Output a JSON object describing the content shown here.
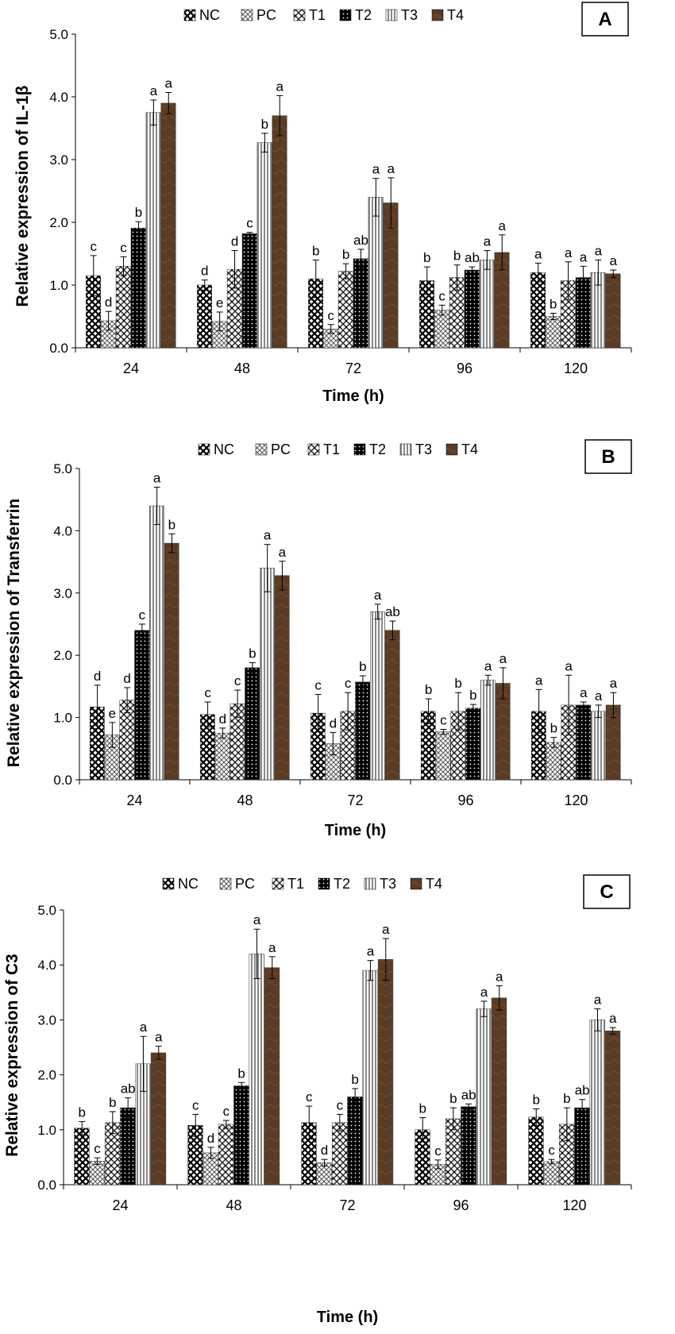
{
  "legend": [
    "NC",
    "PC",
    "T1",
    "T2",
    "T3",
    "T4"
  ],
  "chart_data": [
    {
      "type": "bar",
      "panel": "A",
      "ylabel": "Relative expression of IL-1β",
      "xlabel": "Time (h)",
      "categories": [
        "24",
        "48",
        "72",
        "96",
        "120"
      ],
      "ylim": [
        0,
        5
      ],
      "yticks": [
        "0.0",
        "1.0",
        "2.0",
        "3.0",
        "4.0",
        "5.0"
      ],
      "series": [
        {
          "name": "NC",
          "values": [
            1.15,
            1.0,
            1.1,
            1.07,
            1.2
          ],
          "errors": [
            0.32,
            0.08,
            0.3,
            0.22,
            0.15
          ],
          "letters": [
            "c",
            "d",
            "b",
            "b",
            "a"
          ]
        },
        {
          "name": "PC",
          "values": [
            0.43,
            0.42,
            0.3,
            0.6,
            0.5
          ],
          "errors": [
            0.15,
            0.15,
            0.07,
            0.08,
            0.05
          ],
          "letters": [
            "d",
            "e",
            "c",
            "c",
            "b"
          ]
        },
        {
          "name": "T1",
          "values": [
            1.3,
            1.25,
            1.22,
            1.12,
            1.07
          ],
          "errors": [
            0.15,
            0.3,
            0.12,
            0.2,
            0.3
          ],
          "letters": [
            "c",
            "d",
            "b",
            "b",
            "a"
          ]
        },
        {
          "name": "T2",
          "values": [
            1.91,
            1.82,
            1.42,
            1.24,
            1.12
          ],
          "errors": [
            0.1,
            0.02,
            0.15,
            0.05,
            0.18
          ],
          "letters": [
            "b",
            "c",
            "ab",
            "ab",
            "a"
          ]
        },
        {
          "name": "T3",
          "values": [
            3.75,
            3.27,
            2.4,
            1.4,
            1.2
          ],
          "errors": [
            0.2,
            0.15,
            0.3,
            0.15,
            0.2
          ],
          "letters": [
            "a",
            "b",
            "a",
            "a",
            "a"
          ]
        },
        {
          "name": "T4",
          "values": [
            3.9,
            3.7,
            2.31,
            1.52,
            1.18
          ],
          "errors": [
            0.17,
            0.32,
            0.4,
            0.28,
            0.06
          ],
          "letters": [
            "a",
            "a",
            "a",
            "a",
            "a"
          ]
        }
      ]
    },
    {
      "type": "bar",
      "panel": "B",
      "ylabel": "Relative expression of Transferrin",
      "xlabel": "Time (h)",
      "categories": [
        "24",
        "48",
        "72",
        "96",
        "120"
      ],
      "ylim": [
        0,
        5
      ],
      "yticks": [
        "0.0",
        "1.0",
        "2.0",
        "3.0",
        "4.0",
        "5.0"
      ],
      "series": [
        {
          "name": "NC",
          "values": [
            1.17,
            1.05,
            1.07,
            1.1,
            1.1
          ],
          "errors": [
            0.35,
            0.2,
            0.3,
            0.2,
            0.35
          ],
          "letters": [
            "d",
            "c",
            "c",
            "b",
            "a"
          ]
        },
        {
          "name": "PC",
          "values": [
            0.72,
            0.75,
            0.58,
            0.77,
            0.6
          ],
          "errors": [
            0.2,
            0.08,
            0.18,
            0.04,
            0.08
          ],
          "letters": [
            "e",
            "d",
            "d",
            "c",
            "b"
          ]
        },
        {
          "name": "T1",
          "values": [
            1.28,
            1.22,
            1.1,
            1.1,
            1.2
          ],
          "errors": [
            0.2,
            0.22,
            0.3,
            0.3,
            0.48
          ],
          "letters": [
            "d",
            "c",
            "c",
            "b",
            "a"
          ]
        },
        {
          "name": "T2",
          "values": [
            2.4,
            1.8,
            1.57,
            1.15,
            1.2
          ],
          "errors": [
            0.1,
            0.08,
            0.1,
            0.06,
            0.05
          ],
          "letters": [
            "c",
            "b",
            "b",
            "b",
            "a"
          ]
        },
        {
          "name": "T3",
          "values": [
            4.4,
            3.4,
            2.7,
            1.6,
            1.1
          ],
          "errors": [
            0.3,
            0.38,
            0.12,
            0.08,
            0.1
          ],
          "letters": [
            "a",
            "a",
            "a",
            "a",
            "a"
          ]
        },
        {
          "name": "T4",
          "values": [
            3.8,
            3.28,
            2.4,
            1.55,
            1.2
          ],
          "errors": [
            0.15,
            0.23,
            0.15,
            0.25,
            0.2
          ],
          "letters": [
            "b",
            "a",
            "ab",
            "a",
            "a"
          ]
        }
      ]
    },
    {
      "type": "bar",
      "panel": "C",
      "ylabel": "Relative expression of C3",
      "xlabel": "Time (h)",
      "categories": [
        "24",
        "48",
        "72",
        "96",
        "120"
      ],
      "ylim": [
        0,
        5
      ],
      "yticks": [
        "0.0",
        "1.0",
        "2.0",
        "3.0",
        "4.0",
        "5.0"
      ],
      "series": [
        {
          "name": "NC",
          "values": [
            1.03,
            1.08,
            1.13,
            1.0,
            1.23
          ],
          "errors": [
            0.12,
            0.2,
            0.3,
            0.22,
            0.15
          ],
          "letters": [
            "b",
            "c",
            "c",
            "b",
            "b"
          ]
        },
        {
          "name": "PC",
          "values": [
            0.43,
            0.58,
            0.4,
            0.37,
            0.42
          ],
          "errors": [
            0.06,
            0.1,
            0.06,
            0.08,
            0.04
          ],
          "letters": [
            "c",
            "d",
            "d",
            "c",
            "c"
          ]
        },
        {
          "name": "T1",
          "values": [
            1.13,
            1.1,
            1.13,
            1.2,
            1.1
          ],
          "errors": [
            0.2,
            0.07,
            0.15,
            0.2,
            0.3
          ],
          "letters": [
            "b",
            "c",
            "c",
            "b",
            "b"
          ]
        },
        {
          "name": "T2",
          "values": [
            1.4,
            1.8,
            1.6,
            1.42,
            1.4
          ],
          "errors": [
            0.18,
            0.06,
            0.15,
            0.05,
            0.15
          ],
          "letters": [
            "ab",
            "b",
            "b",
            "ab",
            "ab"
          ]
        },
        {
          "name": "T3",
          "values": [
            2.2,
            4.2,
            3.9,
            3.2,
            3.0
          ],
          "errors": [
            0.5,
            0.45,
            0.18,
            0.14,
            0.2
          ],
          "letters": [
            "a",
            "a",
            "a",
            "a",
            "a"
          ]
        },
        {
          "name": "T4",
          "values": [
            2.4,
            3.95,
            4.1,
            3.4,
            2.8
          ],
          "errors": [
            0.12,
            0.2,
            0.38,
            0.22,
            0.06
          ],
          "letters": [
            "a",
            "a",
            "a",
            "a",
            "a"
          ]
        }
      ]
    }
  ]
}
